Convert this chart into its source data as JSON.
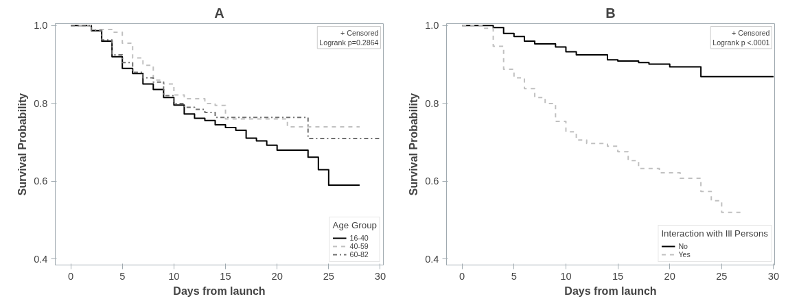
{
  "chart_data": [
    {
      "type": "step",
      "title": "A",
      "xlabel": "Days from launch",
      "ylabel": "Survival Probability",
      "legend_title": "Age Group",
      "legend": "bottom right",
      "grid": false,
      "annotations": [
        "+ Censored",
        "Logrank p=0.2864"
      ],
      "xlim": [
        -1.5,
        30.3
      ],
      "xticks": [
        0,
        5,
        10,
        15,
        20,
        25,
        30
      ],
      "ylim": [
        0.385,
        1.005
      ],
      "yticks": [
        0.4,
        0.6,
        0.8,
        {
          "value": 1,
          "label": "1.0"
        }
      ],
      "series": [
        {
          "name": "16-40",
          "color": "#000000",
          "line_style": "solid",
          "x": [
            0,
            2,
            3,
            4,
            5,
            6,
            7,
            8,
            9,
            10,
            11,
            12,
            13,
            14,
            15,
            16,
            17,
            18,
            19,
            20,
            23,
            24,
            25,
            28
          ],
          "values": [
            1.0,
            0.987,
            0.96,
            0.92,
            0.89,
            0.877,
            0.85,
            0.836,
            0.815,
            0.796,
            0.773,
            0.762,
            0.756,
            0.745,
            0.738,
            0.731,
            0.711,
            0.704,
            0.693,
            0.68,
            0.662,
            0.63,
            0.59,
            0.59
          ]
        },
        {
          "name": "40-59",
          "color": "#c0c0c0",
          "line_style": "dashed",
          "x": [
            0,
            2,
            4,
            5,
            6,
            7,
            8,
            9,
            10,
            11,
            13,
            14,
            15,
            21,
            28
          ],
          "values": [
            1.0,
            0.99,
            0.983,
            0.955,
            0.917,
            0.898,
            0.86,
            0.85,
            0.822,
            0.812,
            0.8,
            0.795,
            0.76,
            0.74,
            0.74
          ]
        },
        {
          "name": "60-82",
          "color": "#707070",
          "line_style": "dashdot",
          "x": [
            0,
            2,
            3,
            4,
            5,
            6,
            7,
            8,
            9,
            10,
            11,
            12,
            13,
            14,
            23,
            30
          ],
          "values": [
            1.0,
            0.988,
            0.963,
            0.925,
            0.905,
            0.88,
            0.866,
            0.855,
            0.82,
            0.8,
            0.79,
            0.785,
            0.777,
            0.764,
            0.71,
            0.71
          ]
        }
      ]
    },
    {
      "type": "step",
      "title": "B",
      "xlabel": "Days from launch",
      "ylabel": "Survival Probability",
      "legend_title": "Interaction with Ill Persons",
      "legend": "bottom right",
      "grid": false,
      "annotations": [
        "+ Censored",
        "Logrank p <.0001"
      ],
      "xlim": [
        -1.5,
        30.1
      ],
      "xticks": [
        0,
        5,
        10,
        15,
        20,
        25,
        30
      ],
      "ylim": [
        0.385,
        1.005
      ],
      "yticks": [
        0.4,
        0.6,
        0.8,
        {
          "value": 1,
          "label": "1.0"
        }
      ],
      "series": [
        {
          "name": "No",
          "color": "#000000",
          "line_style": "solid",
          "x": [
            0,
            3,
            4,
            5,
            6,
            7,
            9,
            10,
            11,
            14,
            15,
            17,
            18,
            20,
            23,
            30
          ],
          "values": [
            1.0,
            0.995,
            0.98,
            0.972,
            0.96,
            0.953,
            0.945,
            0.933,
            0.925,
            0.912,
            0.909,
            0.905,
            0.901,
            0.894,
            0.869,
            0.869
          ]
        },
        {
          "name": "Yes",
          "color": "#c0c0c0",
          "line_style": "dashed",
          "x": [
            0,
            2,
            3,
            4,
            5,
            6,
            7,
            8,
            9,
            10,
            11,
            12,
            14,
            15,
            16,
            17,
            19,
            21,
            23,
            24,
            25,
            27
          ],
          "values": [
            1.0,
            0.993,
            0.947,
            0.888,
            0.866,
            0.838,
            0.815,
            0.8,
            0.754,
            0.727,
            0.706,
            0.697,
            0.69,
            0.676,
            0.653,
            0.633,
            0.622,
            0.608,
            0.574,
            0.55,
            0.52,
            0.52
          ]
        }
      ]
    }
  ]
}
